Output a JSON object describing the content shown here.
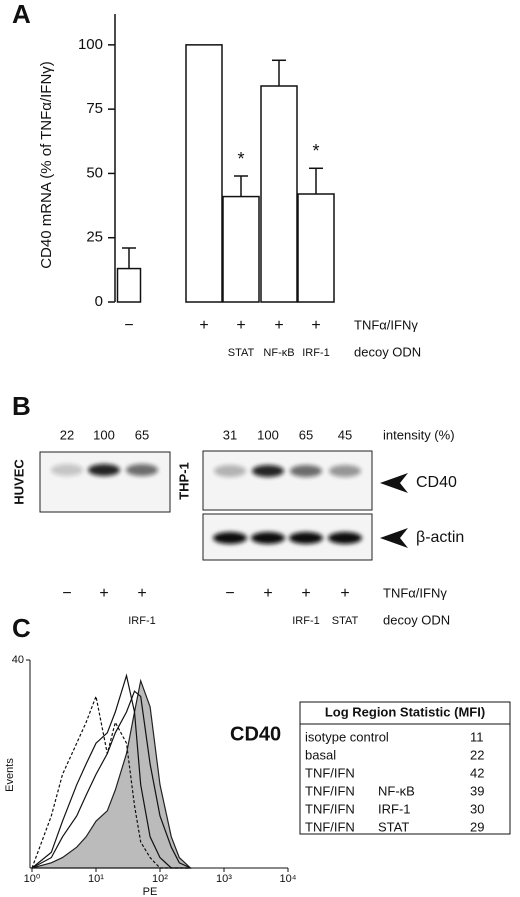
{
  "panel_labels": [
    "A",
    "B",
    "C"
  ],
  "chart_data": [
    {
      "type": "bar",
      "y_label": "CD40 mRNA (% of TNFα/IFNγ)",
      "values": [
        13,
        100,
        41,
        84,
        42
      ],
      "errors": [
        8,
        0,
        8,
        10,
        10
      ],
      "annotations": [
        null,
        null,
        "*",
        null,
        "*"
      ],
      "color": "#ffffff",
      "ylim": [
        0,
        112
      ],
      "yticks": [
        0,
        25,
        50,
        75,
        100
      ],
      "condition_rows": [
        {
          "label": "TNFα/IFNγ",
          "marks": [
            "−",
            "+",
            "+",
            "+",
            "+"
          ]
        },
        {
          "label": "decoy ODN",
          "marks": [
            null,
            null,
            "STAT",
            "NF-κB",
            "IRF-1"
          ]
        }
      ]
    },
    {
      "type": "histogram_curves",
      "x_label": "PE",
      "y_label": "Events",
      "annotation": "CD40",
      "log_x": true,
      "xlim": [
        1,
        10000
      ],
      "xticks": [
        {
          "value": 1,
          "label": "10⁰"
        },
        {
          "value": 10,
          "label": "10¹"
        },
        {
          "value": 100,
          "label": "10²"
        },
        {
          "value": 1000,
          "label": "10³"
        },
        {
          "value": 10000,
          "label": "10⁴"
        }
      ],
      "ylim": [
        0,
        40
      ],
      "yticks": [
        40
      ],
      "x": [
        1,
        2,
        3,
        5,
        7,
        10,
        15,
        20,
        30,
        40,
        50,
        70,
        100,
        150,
        200,
        300
      ],
      "series": [
        {
          "style": "filled",
          "color": "#bbbbbb",
          "values": [
            0,
            1,
            2,
            4,
            6,
            9,
            11,
            15,
            22,
            30,
            36,
            31,
            16,
            6,
            2,
            0
          ]
        },
        {
          "style": "dashed",
          "color": "#111111",
          "values": [
            0,
            10,
            18,
            24,
            28,
            33,
            22,
            28,
            24,
            12,
            5,
            2,
            0,
            0,
            0,
            0
          ]
        },
        {
          "style": "solid",
          "color": "#111111",
          "values": [
            0,
            3,
            9,
            16,
            20,
            24,
            26,
            30,
            37,
            30,
            16,
            6,
            2,
            0,
            0,
            0
          ]
        },
        {
          "style": "solid",
          "color": "#111111",
          "values": [
            0,
            2,
            6,
            10,
            14,
            18,
            22,
            26,
            30,
            34,
            33,
            20,
            10,
            4,
            1,
            0
          ]
        }
      ]
    }
  ],
  "blot": {
    "intensity_label": "intensity (%)",
    "cd40_label": "CD40",
    "actin_label": "β-actin",
    "treatment_label": "TNFα/IFNγ",
    "decoy_label": "decoy ODN",
    "huvec": {
      "label": "HUVEC",
      "intensities": [
        22,
        100,
        65
      ],
      "treatment": [
        "−",
        "+",
        "+"
      ],
      "decoy": [
        null,
        null,
        "IRF-1"
      ]
    },
    "thp1": {
      "label": "THP-1",
      "intensities": [
        31,
        100,
        65,
        45
      ],
      "treatment": [
        "−",
        "+",
        "+",
        "+"
      ],
      "decoy": [
        null,
        null,
        "IRF-1",
        "STAT"
      ]
    }
  },
  "table": {
    "title": "Log Region Statistic (MFI)",
    "rows": [
      {
        "label": "isotype control",
        "mfi": 11
      },
      {
        "label": "basal",
        "mfi": 22
      },
      {
        "label": "TNF/IFN",
        "mfi": 42
      },
      {
        "label": "TNF/IFN",
        "decoy": "NF-κB",
        "mfi": 39
      },
      {
        "label": "TNF/IFN",
        "decoy": "IRF-1",
        "mfi": 30
      },
      {
        "label": "TNF/IFN",
        "decoy": "STAT",
        "mfi": 29
      }
    ]
  }
}
